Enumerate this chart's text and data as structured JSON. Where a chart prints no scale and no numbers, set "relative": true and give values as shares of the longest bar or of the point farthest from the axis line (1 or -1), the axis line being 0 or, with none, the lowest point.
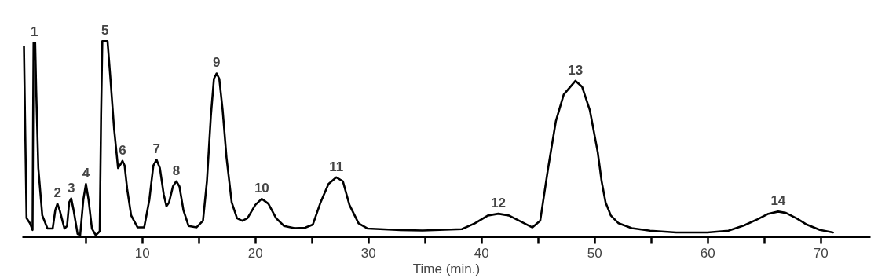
{
  "chart_data": {
    "type": "line",
    "relative": true,
    "xlabel": "Time (min.)",
    "xlim": [
      -0.6,
      74.4
    ],
    "xticks": [
      {
        "value": 5,
        "label": null
      },
      10,
      {
        "value": 15,
        "label": null
      },
      20,
      {
        "value": 25,
        "label": null
      },
      30,
      {
        "value": 35,
        "label": null
      },
      40,
      {
        "value": 45,
        "label": null
      },
      50,
      {
        "value": 55,
        "label": null
      },
      60,
      {
        "value": 65,
        "label": null
      },
      70
    ],
    "grid": false,
    "tick_labels": "x",
    "marker": "none",
    "line_style": "solid",
    "series": [
      {
        "color": "#000000",
        "x": [
          -0.46,
          -0.23,
          0.07,
          0.3,
          0.35,
          0.39,
          0.53,
          0.62,
          0.81,
          1.16,
          1.62,
          2.08,
          2.31,
          2.5,
          2.7,
          3.12,
          3.35,
          3.54,
          3.72,
          3.93,
          4.28,
          4.51,
          4.79,
          5.02,
          5.25,
          5.55,
          5.89,
          6.24,
          6.36,
          6.47,
          6.93,
          7.17,
          7.51,
          7.86,
          8.09,
          8.25,
          8.44,
          8.67,
          9.02,
          9.59,
          10.17,
          10.63,
          10.98,
          11.26,
          11.56,
          11.9,
          12.14,
          12.37,
          12.71,
          13.01,
          13.29,
          13.64,
          14.1,
          14.79,
          15.37,
          15.72,
          16.07,
          16.34,
          16.57,
          16.81,
          17.11,
          17.45,
          17.91,
          18.38,
          18.84,
          19.3,
          20.0,
          20.57,
          21.15,
          21.84,
          22.54,
          23.46,
          24.39,
          25.08,
          25.77,
          26.47,
          27.16,
          27.74,
          28.32,
          29.13,
          29.94,
          32.48,
          34.79,
          38.26,
          39.41,
          40.57,
          41.49,
          42.42,
          43.34,
          44.5,
          45.19,
          45.89,
          46.58,
          47.27,
          48.31,
          48.89,
          49.58,
          50.28,
          50.62,
          50.97,
          51.43,
          52.12,
          53.28,
          54.9,
          57.21,
          59.98,
          61.83,
          63.22,
          64.38,
          65.3,
          66.23,
          66.92,
          67.84,
          68.77,
          69.92,
          71.08
        ],
        "values": [
          0.973,
          0.095,
          0.069,
          0.035,
          0.62,
          0.992,
          0.992,
          0.754,
          0.351,
          0.109,
          0.042,
          0.042,
          0.136,
          0.169,
          0.136,
          0.042,
          0.055,
          0.176,
          0.196,
          0.136,
          0.015,
          0.008,
          0.19,
          0.27,
          0.19,
          0.042,
          0.008,
          0.028,
          0.62,
          1.0,
          1.0,
          0.821,
          0.552,
          0.351,
          0.371,
          0.388,
          0.364,
          0.243,
          0.109,
          0.048,
          0.048,
          0.19,
          0.364,
          0.394,
          0.351,
          0.216,
          0.156,
          0.176,
          0.257,
          0.284,
          0.257,
          0.136,
          0.055,
          0.048,
          0.082,
          0.284,
          0.62,
          0.808,
          0.835,
          0.808,
          0.647,
          0.405,
          0.176,
          0.095,
          0.082,
          0.095,
          0.163,
          0.194,
          0.169,
          0.095,
          0.055,
          0.044,
          0.046,
          0.062,
          0.176,
          0.27,
          0.304,
          0.284,
          0.163,
          0.069,
          0.042,
          0.035,
          0.032,
          0.039,
          0.069,
          0.109,
          0.118,
          0.109,
          0.082,
          0.048,
          0.082,
          0.351,
          0.593,
          0.727,
          0.797,
          0.767,
          0.647,
          0.431,
          0.284,
          0.176,
          0.109,
          0.069,
          0.044,
          0.031,
          0.022,
          0.022,
          0.031,
          0.058,
          0.089,
          0.116,
          0.129,
          0.122,
          0.095,
          0.062,
          0.035,
          0.022
        ]
      }
    ],
    "annotations": [
      {
        "text": "1",
        "x": 0.46,
        "y": 0.992
      },
      {
        "text": "2",
        "x": 2.5,
        "y": 0.169
      },
      {
        "text": "3",
        "x": 3.72,
        "y": 0.196
      },
      {
        "text": "4",
        "x": 5.02,
        "y": 0.27
      },
      {
        "text": "5",
        "x": 6.7,
        "y": 1.0
      },
      {
        "text": "6",
        "x": 8.25,
        "y": 0.388
      },
      {
        "text": "7",
        "x": 11.26,
        "y": 0.394
      },
      {
        "text": "8",
        "x": 13.01,
        "y": 0.284
      },
      {
        "text": "9",
        "x": 16.57,
        "y": 0.835
      },
      {
        "text": "10",
        "x": 20.57,
        "y": 0.194
      },
      {
        "text": "11",
        "x": 27.16,
        "y": 0.304
      },
      {
        "text": "12",
        "x": 41.49,
        "y": 0.118
      },
      {
        "text": "13",
        "x": 48.31,
        "y": 0.797
      },
      {
        "text": "14",
        "x": 66.23,
        "y": 0.129
      }
    ]
  }
}
